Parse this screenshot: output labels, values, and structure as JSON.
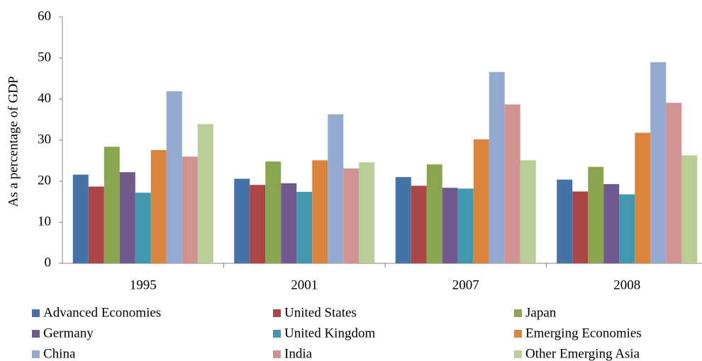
{
  "chart_data": {
    "type": "bar",
    "y_label": "As a percentage of GDP",
    "categories": [
      "1995",
      "2001",
      "2007",
      "2008"
    ],
    "series": [
      {
        "name": "Advanced Economies",
        "color": "#4572a7",
        "values": [
          21.6,
          20.6,
          21.0,
          20.4
        ]
      },
      {
        "name": "United States",
        "color": "#aa4643",
        "values": [
          18.7,
          19.1,
          18.9,
          17.5
        ]
      },
      {
        "name": "Japan",
        "color": "#89a54e",
        "values": [
          28.4,
          24.8,
          24.1,
          23.5
        ]
      },
      {
        "name": "Germany",
        "color": "#71588f",
        "values": [
          22.2,
          19.5,
          18.4,
          19.3
        ]
      },
      {
        "name": "United Kingdom",
        "color": "#4198af",
        "values": [
          17.2,
          17.4,
          18.2,
          16.8
        ]
      },
      {
        "name": "Emerging Economies",
        "color": "#db843d",
        "values": [
          27.6,
          25.1,
          30.2,
          31.8
        ]
      },
      {
        "name": "China",
        "color": "#93a9cf",
        "values": [
          41.9,
          36.3,
          46.6,
          49.0
        ]
      },
      {
        "name": "India",
        "color": "#d19392",
        "values": [
          26.0,
          23.1,
          38.7,
          39.1
        ]
      },
      {
        "name": "Other Emerging Asia",
        "color": "#b9cd96",
        "values": [
          33.9,
          24.6,
          25.1,
          26.3
        ]
      }
    ],
    "ylim": [
      0,
      60
    ],
    "yticks": [
      0,
      10,
      20,
      30,
      40,
      50,
      60
    ],
    "grid": false,
    "legend": "bottom"
  }
}
